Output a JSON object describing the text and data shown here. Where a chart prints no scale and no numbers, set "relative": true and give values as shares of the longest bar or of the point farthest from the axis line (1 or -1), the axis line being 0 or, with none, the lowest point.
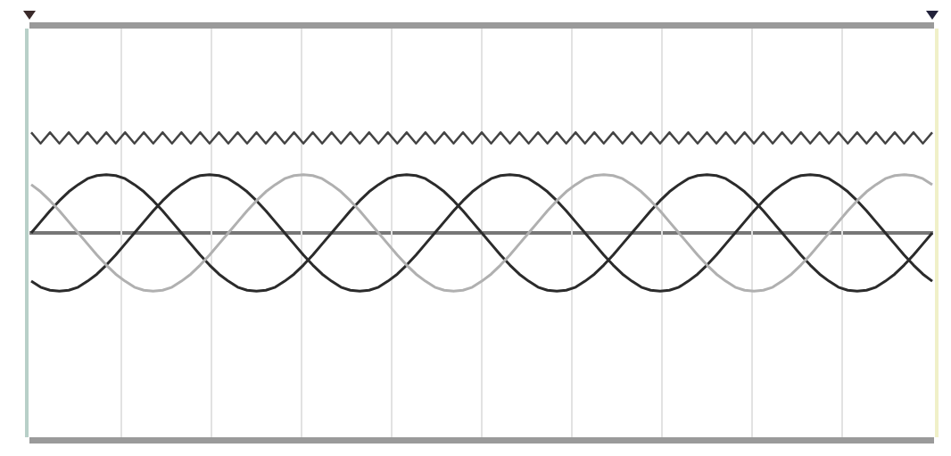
{
  "chart_data": {
    "type": "line",
    "relative": true,
    "categories": [
      null,
      null,
      null,
      null,
      null,
      null,
      null,
      null,
      null,
      null,
      null,
      null,
      null,
      null,
      null,
      null,
      null,
      null,
      null,
      null,
      null,
      null,
      null,
      null,
      null,
      null,
      null,
      null,
      null,
      null,
      null,
      null,
      null,
      null,
      null,
      null,
      null,
      null,
      null,
      null,
      null,
      null,
      null,
      null,
      null,
      null,
      null,
      null,
      null,
      null,
      null,
      null,
      null,
      null,
      null,
      null,
      null,
      null,
      null,
      null,
      null,
      null,
      null,
      null,
      null,
      null,
      null,
      null,
      null,
      null,
      null,
      null,
      null,
      null,
      null,
      null,
      null,
      null,
      null,
      null,
      null,
      null,
      null,
      null,
      null,
      null,
      null,
      null,
      null,
      null,
      null,
      null,
      null,
      null,
      null,
      null,
      null
    ],
    "grid": "x",
    "legend": false,
    "marker": "none",
    "line_style": "solid",
    "series": [
      {
        "color": "#444444",
        "values": [
          1,
          0.89,
          1,
          0.89,
          1,
          0.89,
          1,
          0.89,
          1,
          0.89,
          1,
          0.89,
          1,
          0.89,
          1,
          0.89,
          1,
          0.89,
          1,
          0.89,
          1,
          0.89,
          1,
          0.89,
          1,
          0.89,
          1,
          0.89,
          1,
          0.89,
          1,
          0.89,
          1,
          0.89,
          1,
          0.89,
          1,
          0.89,
          1,
          0.89,
          1,
          0.89,
          1,
          0.89,
          1,
          0.89,
          1,
          0.89,
          1,
          0.89,
          1,
          0.89,
          1,
          0.89,
          1,
          0.89,
          1,
          0.89,
          1,
          0.89,
          1,
          0.89,
          1,
          0.89,
          1,
          0.89,
          1,
          0.89,
          1,
          0.89,
          1,
          0.89,
          1,
          0.89,
          1,
          0.89,
          1,
          0.89,
          1,
          0.89,
          1,
          0.89,
          1,
          0.89,
          1,
          0.89,
          1,
          0.89,
          1,
          0.89,
          1,
          0.89,
          1,
          0.89,
          1,
          0.89,
          1
        ]
      },
      {
        "color": "#2b2b2b",
        "values": [
          0,
          0.11,
          0.22,
          0.32,
          0.41,
          0.48,
          0.54,
          0.57,
          0.58,
          0.57,
          0.54,
          0.48,
          0.41,
          0.32,
          0.22,
          0.11,
          0,
          -0.11,
          -0.22,
          -0.32,
          -0.41,
          -0.48,
          -0.54,
          -0.57,
          -0.58,
          -0.57,
          -0.54,
          -0.48,
          -0.41,
          -0.32,
          -0.22,
          -0.11,
          0,
          0.11,
          0.22,
          0.32,
          0.41,
          0.48,
          0.54,
          0.57,
          0.58,
          0.57,
          0.54,
          0.48,
          0.41,
          0.32,
          0.22,
          0.11,
          0,
          -0.11,
          -0.22,
          -0.32,
          -0.41,
          -0.48,
          -0.54,
          -0.57,
          -0.58,
          -0.57,
          -0.54,
          -0.48,
          -0.41,
          -0.32,
          -0.22,
          -0.11,
          0,
          0.11,
          0.22,
          0.32,
          0.41,
          0.48,
          0.54,
          0.57,
          0.58,
          0.57,
          0.54,
          0.48,
          0.41,
          0.32,
          0.22,
          0.11,
          0,
          -0.11,
          -0.22,
          -0.32,
          -0.41,
          -0.48,
          -0.54,
          -0.57,
          -0.58,
          -0.57,
          -0.54,
          -0.48,
          -0.41,
          -0.32,
          -0.22,
          -0.11,
          0
        ]
      },
      {
        "color": "#2b2b2b",
        "values": [
          -0.48,
          -0.54,
          -0.57,
          -0.58,
          -0.57,
          -0.54,
          -0.48,
          -0.41,
          -0.32,
          -0.22,
          -0.11,
          0,
          0.11,
          0.22,
          0.32,
          0.41,
          0.48,
          0.54,
          0.57,
          0.58,
          0.57,
          0.54,
          0.48,
          0.41,
          0.32,
          0.22,
          0.11,
          0,
          -0.11,
          -0.22,
          -0.32,
          -0.41,
          -0.48,
          -0.54,
          -0.57,
          -0.58,
          -0.57,
          -0.54,
          -0.48,
          -0.41,
          -0.32,
          -0.22,
          -0.11,
          0,
          0.11,
          0.22,
          0.32,
          0.41,
          0.48,
          0.54,
          0.57,
          0.58,
          0.57,
          0.54,
          0.48,
          0.41,
          0.32,
          0.22,
          0.11,
          0,
          -0.11,
          -0.22,
          -0.32,
          -0.41,
          -0.48,
          -0.54,
          -0.57,
          -0.58,
          -0.57,
          -0.54,
          -0.48,
          -0.41,
          -0.32,
          -0.22,
          -0.11,
          0,
          0.11,
          0.22,
          0.32,
          0.41,
          0.48,
          0.54,
          0.57,
          0.58,
          0.57,
          0.54,
          0.48,
          0.41,
          0.32,
          0.22,
          0.11,
          0,
          -0.11,
          -0.22,
          -0.32,
          -0.41,
          -0.48
        ]
      },
      {
        "color": "#b0b0b0",
        "values": [
          0.48,
          0.41,
          0.32,
          0.22,
          0.11,
          0,
          -0.11,
          -0.22,
          -0.32,
          -0.41,
          -0.48,
          -0.54,
          -0.57,
          -0.58,
          -0.57,
          -0.54,
          -0.48,
          -0.41,
          -0.32,
          -0.22,
          -0.11,
          0,
          0.11,
          0.22,
          0.32,
          0.41,
          0.48,
          0.54,
          0.57,
          0.58,
          0.57,
          0.54,
          0.48,
          0.41,
          0.32,
          0.22,
          0.11,
          0,
          -0.11,
          -0.22,
          -0.32,
          -0.41,
          -0.48,
          -0.54,
          -0.57,
          -0.58,
          -0.57,
          -0.54,
          -0.48,
          -0.41,
          -0.32,
          -0.22,
          -0.11,
          0,
          0.11,
          0.22,
          0.32,
          0.41,
          0.48,
          0.54,
          0.57,
          0.58,
          0.57,
          0.54,
          0.48,
          0.41,
          0.32,
          0.22,
          0.11,
          0,
          -0.11,
          -0.22,
          -0.32,
          -0.41,
          -0.48,
          -0.54,
          -0.57,
          -0.58,
          -0.57,
          -0.54,
          -0.48,
          -0.41,
          -0.32,
          -0.22,
          -0.11,
          0,
          0.11,
          0.22,
          0.32,
          0.41,
          0.48,
          0.54,
          0.57,
          0.58,
          0.57,
          0.54,
          0.48
        ]
      }
    ]
  }
}
